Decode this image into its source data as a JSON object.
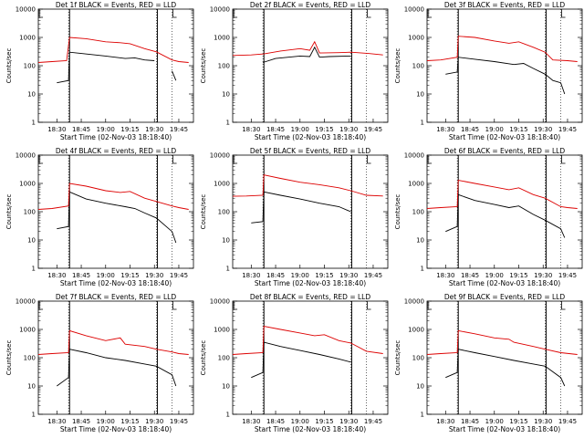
{
  "chart_data": [
    {
      "type": "line",
      "title": "Det 1f BLACK = Events, RED = LLD",
      "xlabel": "Start Time (02-Nov-03 18:18:40)",
      "ylabel": "Counts/sec",
      "yscale": "log",
      "ylim": [
        1,
        10000
      ],
      "yticks": [
        "1",
        "10",
        "100",
        "1000",
        "10000"
      ],
      "xticks": [
        "18:30",
        "18:45",
        "19:00",
        "19:15",
        "19:30",
        "19:45"
      ],
      "series": [
        {
          "color": "#000000",
          "values": [
            [
              18.5,
              25
            ],
            [
              18.62,
              30
            ],
            [
              18.63,
              300
            ],
            [
              18.75,
              270
            ],
            [
              19.0,
              220
            ],
            [
              19.2,
              180
            ],
            [
              19.3,
              190
            ],
            [
              19.4,
              160
            ],
            [
              19.5,
              150
            ],
            [
              19.52,
              null
            ],
            [
              19.68,
              65
            ],
            [
              19.72,
              30
            ]
          ]
        },
        {
          "color": "#dd0000",
          "values": [
            [
              18.31,
              130
            ],
            [
              18.45,
              140
            ],
            [
              18.6,
              150
            ],
            [
              18.63,
              1000
            ],
            [
              18.8,
              900
            ],
            [
              19.0,
              700
            ],
            [
              19.15,
              650
            ],
            [
              19.25,
              600
            ],
            [
              19.4,
              400
            ],
            [
              19.52,
              310
            ],
            [
              19.68,
              160
            ],
            [
              19.75,
              140
            ],
            [
              19.85,
              130
            ]
          ]
        }
      ],
      "gridlines": "vertical-dotted"
    },
    {
      "type": "line",
      "title": "Det 2f BLACK = Events, RED = LLD",
      "xlabel": "Start Time (02-Nov-03 18:18:40)",
      "ylabel": "Counts/sec",
      "yscale": "log",
      "ylim": [
        1,
        10000
      ],
      "yticks": [
        "1",
        "10",
        "100",
        "1000",
        "10000"
      ],
      "xticks": [
        "18:30",
        "18:45",
        "19:00",
        "19:15",
        "19:30",
        "19:45"
      ],
      "series": [
        {
          "color": "#000000",
          "values": [
            [
              18.62,
              130
            ],
            [
              18.75,
              180
            ],
            [
              19.0,
              220
            ],
            [
              19.1,
              210
            ],
            [
              19.15,
              450
            ],
            [
              19.2,
              200
            ],
            [
              19.3,
              210
            ],
            [
              19.52,
              220
            ]
          ]
        },
        {
          "color": "#dd0000",
          "values": [
            [
              18.31,
              230
            ],
            [
              18.5,
              240
            ],
            [
              18.63,
              260
            ],
            [
              18.8,
              330
            ],
            [
              19.0,
              400
            ],
            [
              19.1,
              350
            ],
            [
              19.15,
              700
            ],
            [
              19.2,
              280
            ],
            [
              19.4,
              290
            ],
            [
              19.52,
              300
            ],
            [
              19.7,
              270
            ],
            [
              19.85,
              240
            ]
          ]
        }
      ],
      "gridlines": "vertical-dotted"
    },
    {
      "type": "line",
      "title": "Det 3f BLACK = Events, RED = LLD",
      "xlabel": "Start Time (02-Nov-03 18:18:40)",
      "ylabel": "Counts/sec",
      "yscale": "log",
      "ylim": [
        1,
        10000
      ],
      "yticks": [
        "1",
        "10",
        "100",
        "1000",
        "10000"
      ],
      "xticks": [
        "18:30",
        "18:45",
        "19:00",
        "19:15",
        "19:30",
        "19:45"
      ],
      "series": [
        {
          "color": "#000000",
          "values": [
            [
              18.5,
              50
            ],
            [
              18.62,
              60
            ],
            [
              18.63,
              200
            ],
            [
              18.8,
              170
            ],
            [
              19.0,
              140
            ],
            [
              19.2,
              110
            ],
            [
              19.3,
              120
            ],
            [
              19.4,
              80
            ],
            [
              19.52,
              50
            ],
            [
              19.6,
              30
            ],
            [
              19.68,
              25
            ],
            [
              19.72,
              10
            ]
          ]
        },
        {
          "color": "#dd0000",
          "values": [
            [
              18.31,
              150
            ],
            [
              18.45,
              160
            ],
            [
              18.62,
              200
            ],
            [
              18.63,
              1100
            ],
            [
              18.8,
              1000
            ],
            [
              19.0,
              750
            ],
            [
              19.15,
              620
            ],
            [
              19.25,
              700
            ],
            [
              19.4,
              450
            ],
            [
              19.52,
              300
            ],
            [
              19.6,
              160
            ],
            [
              19.75,
              150
            ],
            [
              19.85,
              140
            ]
          ]
        }
      ],
      "gridlines": "vertical-dotted"
    },
    {
      "type": "line",
      "title": "Det 4f BLACK = Events, RED = LLD",
      "xlabel": "Start Time (02-Nov-03 18:18:40)",
      "ylabel": "Counts/sec",
      "yscale": "log",
      "ylim": [
        1,
        10000
      ],
      "yticks": [
        "1",
        "10",
        "100",
        "1000",
        "10000"
      ],
      "xticks": [
        "18:30",
        "18:45",
        "19:00",
        "19:15",
        "19:30",
        "19:45"
      ],
      "series": [
        {
          "color": "#000000",
          "values": [
            [
              18.5,
              25
            ],
            [
              18.62,
              30
            ],
            [
              18.63,
              500
            ],
            [
              18.8,
              280
            ],
            [
              19.0,
              200
            ],
            [
              19.2,
              150
            ],
            [
              19.3,
              130
            ],
            [
              19.4,
              90
            ],
            [
              19.52,
              60
            ],
            [
              19.68,
              20
            ],
            [
              19.72,
              8
            ]
          ]
        },
        {
          "color": "#dd0000",
          "values": [
            [
              18.31,
              120
            ],
            [
              18.45,
              130
            ],
            [
              18.62,
              160
            ],
            [
              18.63,
              1000
            ],
            [
              18.8,
              800
            ],
            [
              19.0,
              550
            ],
            [
              19.15,
              480
            ],
            [
              19.25,
              520
            ],
            [
              19.4,
              300
            ],
            [
              19.52,
              230
            ],
            [
              19.68,
              160
            ],
            [
              19.75,
              140
            ],
            [
              19.85,
              120
            ]
          ]
        }
      ],
      "gridlines": "vertical-dotted"
    },
    {
      "type": "line",
      "title": "Det 5f BLACK = Events, RED = LLD",
      "xlabel": "Start Time (02-Nov-03 18:18:40)",
      "ylabel": "Counts/sec",
      "yscale": "log",
      "ylim": [
        1,
        10000
      ],
      "yticks": [
        "1",
        "10",
        "100",
        "1000",
        "10000"
      ],
      "xticks": [
        "18:30",
        "18:45",
        "19:00",
        "19:15",
        "19:30",
        "19:45"
      ],
      "series": [
        {
          "color": "#000000",
          "values": [
            [
              18.5,
              40
            ],
            [
              18.62,
              45
            ],
            [
              18.63,
              500
            ],
            [
              18.8,
              380
            ],
            [
              19.0,
              280
            ],
            [
              19.2,
              200
            ],
            [
              19.4,
              150
            ],
            [
              19.52,
              100
            ]
          ]
        },
        {
          "color": "#dd0000",
          "values": [
            [
              18.31,
              350
            ],
            [
              18.45,
              360
            ],
            [
              18.62,
              380
            ],
            [
              18.63,
              2000
            ],
            [
              18.8,
              1500
            ],
            [
              19.0,
              1100
            ],
            [
              19.2,
              900
            ],
            [
              19.4,
              700
            ],
            [
              19.52,
              550
            ],
            [
              19.68,
              380
            ],
            [
              19.85,
              360
            ]
          ]
        }
      ],
      "gridlines": "vertical-dotted"
    },
    {
      "type": "line",
      "title": "Det 6f BLACK = Events, RED = LLD",
      "xlabel": "Start Time (02-Nov-03 18:18:40)",
      "ylabel": "Counts/sec",
      "yscale": "log",
      "ylim": [
        1,
        10000
      ],
      "yticks": [
        "1",
        "10",
        "100",
        "1000",
        "10000"
      ],
      "xticks": [
        "18:30",
        "18:45",
        "19:00",
        "19:15",
        "19:30",
        "19:45"
      ],
      "series": [
        {
          "color": "#000000",
          "values": [
            [
              18.5,
              20
            ],
            [
              18.62,
              30
            ],
            [
              18.63,
              400
            ],
            [
              18.8,
              250
            ],
            [
              19.0,
              180
            ],
            [
              19.15,
              140
            ],
            [
              19.25,
              160
            ],
            [
              19.4,
              80
            ],
            [
              19.52,
              50
            ],
            [
              19.68,
              25
            ],
            [
              19.72,
              12
            ]
          ]
        },
        {
          "color": "#dd0000",
          "values": [
            [
              18.31,
              130
            ],
            [
              18.45,
              140
            ],
            [
              18.62,
              150
            ],
            [
              18.63,
              1300
            ],
            [
              18.8,
              1000
            ],
            [
              19.0,
              750
            ],
            [
              19.15,
              600
            ],
            [
              19.25,
              700
            ],
            [
              19.4,
              400
            ],
            [
              19.52,
              300
            ],
            [
              19.68,
              150
            ],
            [
              19.75,
              140
            ],
            [
              19.85,
              130
            ]
          ]
        }
      ],
      "gridlines": "vertical-dotted"
    },
    {
      "type": "line",
      "title": "Det 7f BLACK = Events, RED = LLD",
      "xlabel": "Start Time (02-Nov-03 18:18:40)",
      "ylabel": "Counts/sec",
      "yscale": "log",
      "ylim": [
        1,
        10000
      ],
      "yticks": [
        "1",
        "10",
        "100",
        "1000",
        "10000"
      ],
      "xticks": [
        "18:30",
        "18:45",
        "19:00",
        "19:15",
        "19:30",
        "19:45"
      ],
      "series": [
        {
          "color": "#000000",
          "values": [
            [
              18.5,
              10
            ],
            [
              18.62,
              20
            ],
            [
              18.63,
              200
            ],
            [
              18.8,
              150
            ],
            [
              19.0,
              100
            ],
            [
              19.2,
              80
            ],
            [
              19.4,
              60
            ],
            [
              19.52,
              50
            ],
            [
              19.68,
              25
            ],
            [
              19.72,
              10
            ]
          ]
        },
        {
          "color": "#dd0000",
          "values": [
            [
              18.31,
              130
            ],
            [
              18.45,
              140
            ],
            [
              18.62,
              150
            ],
            [
              18.63,
              900
            ],
            [
              18.8,
              600
            ],
            [
              19.0,
              400
            ],
            [
              19.15,
              500
            ],
            [
              19.2,
              300
            ],
            [
              19.4,
              250
            ],
            [
              19.52,
              200
            ],
            [
              19.68,
              160
            ],
            [
              19.75,
              140
            ],
            [
              19.85,
              130
            ]
          ]
        }
      ],
      "gridlines": "vertical-dotted"
    },
    {
      "type": "line",
      "title": "Det 8f BLACK = Events, RED = LLD",
      "xlabel": "Start Time (02-Nov-03 18:18:40)",
      "ylabel": "Counts/sec",
      "yscale": "log",
      "ylim": [
        1,
        10000
      ],
      "yticks": [
        "1",
        "10",
        "100",
        "1000",
        "10000"
      ],
      "xticks": [
        "18:30",
        "18:45",
        "19:00",
        "19:15",
        "19:30",
        "19:45"
      ],
      "series": [
        {
          "color": "#000000",
          "values": [
            [
              18.5,
              20
            ],
            [
              18.62,
              30
            ],
            [
              18.63,
              350
            ],
            [
              18.8,
              250
            ],
            [
              19.0,
              180
            ],
            [
              19.2,
              130
            ],
            [
              19.4,
              90
            ],
            [
              19.52,
              70
            ]
          ]
        },
        {
          "color": "#dd0000",
          "values": [
            [
              18.31,
              130
            ],
            [
              18.45,
              140
            ],
            [
              18.62,
              150
            ],
            [
              18.63,
              1300
            ],
            [
              18.8,
              1000
            ],
            [
              19.0,
              750
            ],
            [
              19.15,
              600
            ],
            [
              19.25,
              650
            ],
            [
              19.4,
              400
            ],
            [
              19.52,
              330
            ],
            [
              19.68,
              170
            ],
            [
              19.85,
              140
            ]
          ]
        }
      ],
      "gridlines": "vertical-dotted"
    },
    {
      "type": "line",
      "title": "Det 9f BLACK = Events, RED = LLD",
      "xlabel": "Start Time (02-Nov-03 18:18:40)",
      "ylabel": "Counts/sec",
      "yscale": "log",
      "ylim": [
        1,
        10000
      ],
      "yticks": [
        "1",
        "10",
        "100",
        "1000",
        "10000"
      ],
      "xticks": [
        "18:30",
        "18:45",
        "19:00",
        "19:15",
        "19:30",
        "19:45"
      ],
      "series": [
        {
          "color": "#000000",
          "values": [
            [
              18.5,
              20
            ],
            [
              18.62,
              30
            ],
            [
              18.63,
              200
            ],
            [
              18.8,
              150
            ],
            [
              19.0,
              110
            ],
            [
              19.2,
              80
            ],
            [
              19.4,
              60
            ],
            [
              19.52,
              50
            ],
            [
              19.68,
              20
            ],
            [
              19.72,
              10
            ]
          ]
        },
        {
          "color": "#dd0000",
          "values": [
            [
              18.31,
              130
            ],
            [
              18.45,
              140
            ],
            [
              18.62,
              150
            ],
            [
              18.63,
              900
            ],
            [
              18.8,
              700
            ],
            [
              19.0,
              500
            ],
            [
              19.15,
              450
            ],
            [
              19.2,
              350
            ],
            [
              19.4,
              250
            ],
            [
              19.52,
              200
            ],
            [
              19.68,
              150
            ],
            [
              19.85,
              130
            ]
          ]
        }
      ],
      "gridlines": "vertical-dotted"
    }
  ]
}
